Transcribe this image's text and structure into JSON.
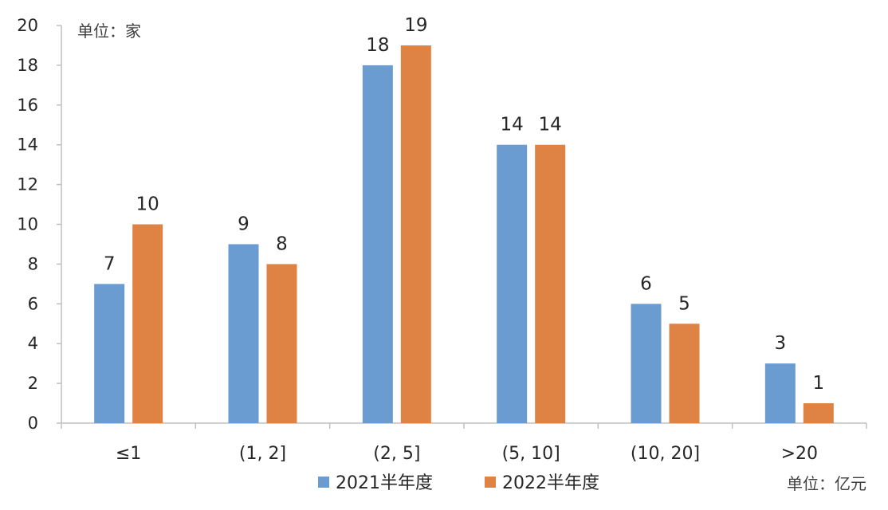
{
  "chart_data": {
    "type": "bar",
    "categories": [
      "≤1",
      "(1, 2]",
      "(2, 5]",
      "(5, 10]",
      "(10, 20]",
      ">20"
    ],
    "series": [
      {
        "name": "2021半年度",
        "values": [
          7,
          9,
          18,
          14,
          6,
          3
        ],
        "color": "#6A9BD1"
      },
      {
        "name": "2022半年度",
        "values": [
          10,
          8,
          19,
          14,
          5,
          1
        ],
        "color": "#DE8344"
      }
    ],
    "ylim": [
      0,
      20
    ],
    "yticks": [
      0,
      2,
      4,
      6,
      8,
      10,
      12,
      14,
      16,
      18,
      20
    ],
    "y_unit_label": "单位：家",
    "x_unit_label": "单位：亿元",
    "legend_position": "bottom",
    "grid": false
  }
}
